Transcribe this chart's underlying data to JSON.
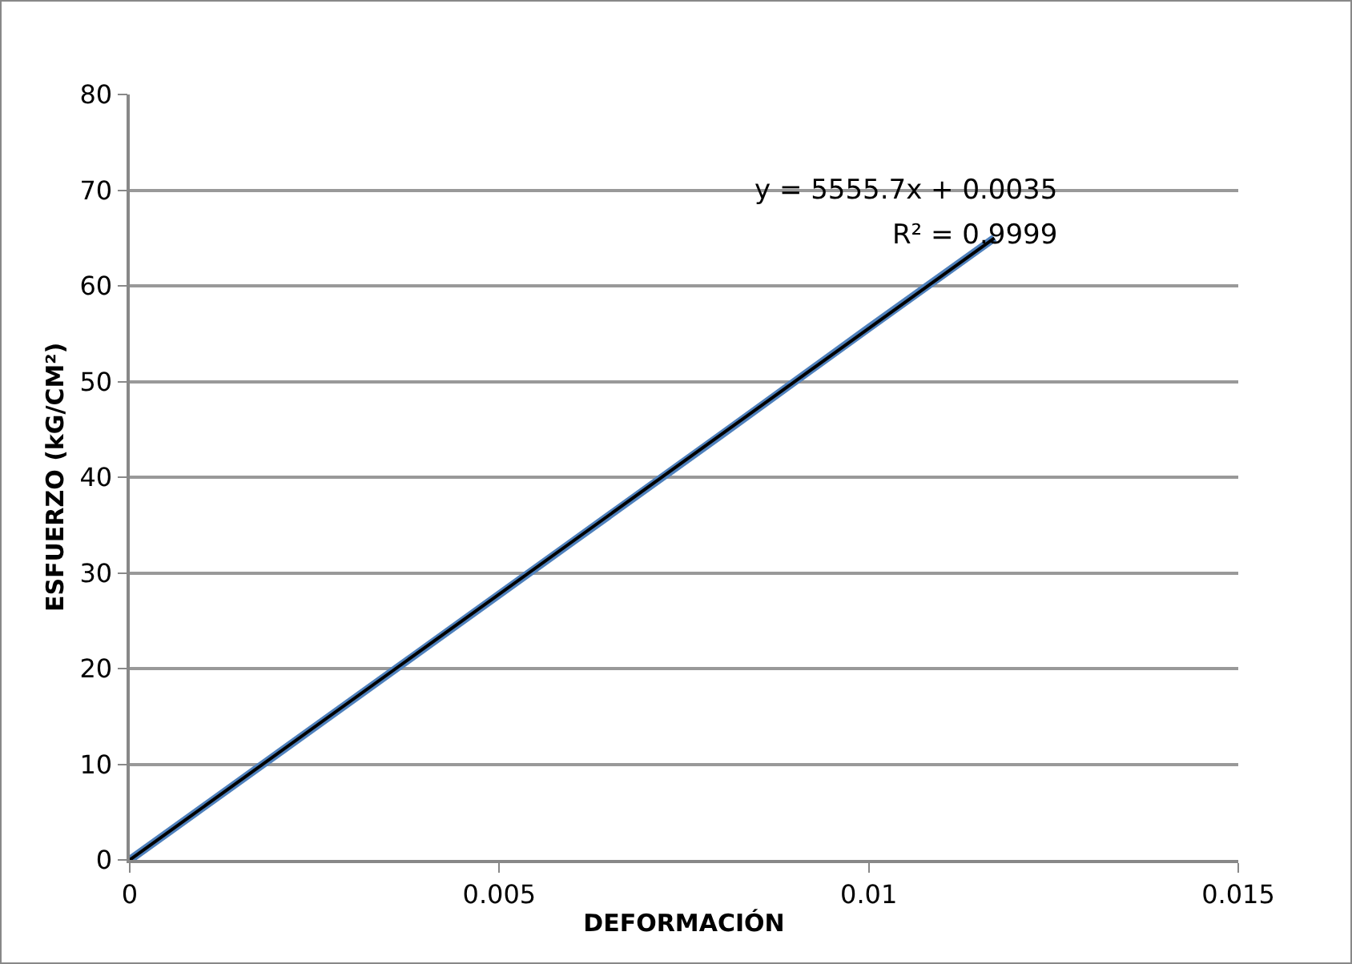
{
  "chart_data": {
    "type": "line",
    "xlabel": "DEFORMACIÓN",
    "ylabel": "ESFUERZO (kG/CM²)",
    "x": [
      0,
      0.002,
      0.004,
      0.006,
      0.008,
      0.01,
      0.0117
    ],
    "series": [
      {
        "color": "#4f81bd",
        "values": [
          0,
          11.1,
          22.2,
          33.3,
          44.4,
          55.6,
          65
        ]
      },
      {
        "type": "line",
        "color": "#000000",
        "x": [
          0,
          0.0117
        ],
        "values": [
          0,
          65
        ]
      }
    ],
    "xlim": [
      0,
      0.015
    ],
    "xticks": [
      0,
      0.005,
      0.01,
      0.015
    ],
    "ylim": [
      0,
      80
    ],
    "yticks": [
      0,
      10,
      20,
      30,
      40,
      50,
      60,
      70,
      80
    ],
    "grid": "y",
    "marker": "none",
    "annotations": [
      "y = 5555.7x + 0.0035",
      "R² = 0.9999"
    ]
  }
}
